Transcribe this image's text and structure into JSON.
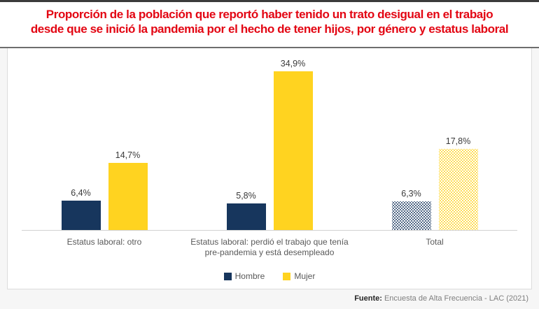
{
  "title": {
    "line1": "Proporción de la población que reportó haber tenido un trato desigual en el trabajo",
    "line2": "desde que se inició la pandemia por el hecho de tener hijos, por género y estatus laboral",
    "color": "#E30613"
  },
  "chart_data": {
    "type": "bar",
    "categories": [
      "Estatus laboral: otro",
      "Estatus laboral: perdió el trabajo que tenía pre-pandemia y está desempleado",
      "Total"
    ],
    "series": [
      {
        "name": "Hombre",
        "color": "#17365D",
        "values": [
          6.4,
          5.8,
          6.3
        ],
        "value_labels": [
          "6,4%",
          "5,8%",
          "6,3%"
        ]
      },
      {
        "name": "Mujer",
        "color": "#FFD320",
        "values": [
          14.7,
          34.9,
          17.8
        ],
        "value_labels": [
          "14,7%",
          "34,9%",
          "17,8%"
        ]
      }
    ],
    "pattern_category_index": 2,
    "ylim": [
      0,
      37
    ],
    "grid": false,
    "legend_position": "bottom",
    "value_label_format": "comma-decimal percent"
  },
  "source": {
    "prefix": "Fuente:",
    "text": "Encuesta de Alta Frecuencia - LAC (2021)"
  }
}
